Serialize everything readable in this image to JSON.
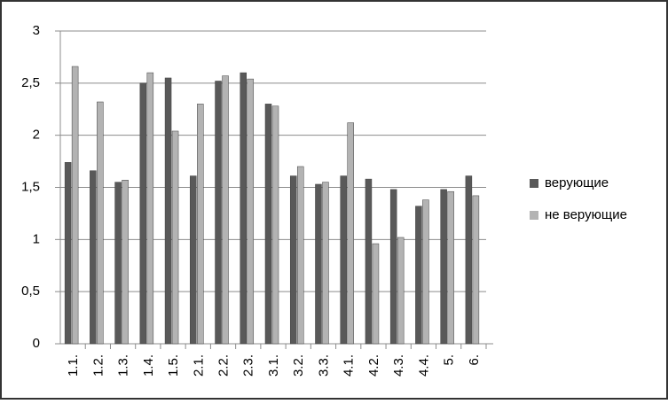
{
  "chart_data": {
    "type": "bar",
    "categories": [
      "1.1.",
      "1.2.",
      "1.3.",
      "1.4.",
      "1.5.",
      "2.1.",
      "2.2.",
      "2.3.",
      "3.1.",
      "3.2.",
      "3.3.",
      "4.1.",
      "4.2.",
      "4.3.",
      "4.4.",
      "5.",
      "6."
    ],
    "series": [
      {
        "name": "верующие",
        "color": "#595959",
        "values": [
          1.74,
          1.66,
          1.55,
          2.5,
          2.55,
          1.61,
          2.52,
          2.6,
          2.3,
          1.61,
          1.53,
          1.61,
          1.58,
          1.48,
          1.32,
          1.48,
          1.61
        ]
      },
      {
        "name": "не верующие",
        "color": "#b3b3b3",
        "values": [
          2.66,
          2.32,
          1.57,
          2.6,
          2.04,
          2.3,
          2.57,
          2.54,
          2.28,
          1.7,
          1.55,
          2.12,
          0.96,
          1.02,
          1.38,
          1.46,
          1.42
        ]
      }
    ],
    "ylim": [
      0,
      3
    ],
    "yticks": [
      0,
      {
        "value": 0.5,
        "label": "0,5"
      },
      1,
      {
        "value": 1.5,
        "label": "1,5"
      },
      2,
      {
        "value": 2.5,
        "label": "2,5"
      },
      3
    ],
    "grid": true,
    "legend": "right"
  }
}
